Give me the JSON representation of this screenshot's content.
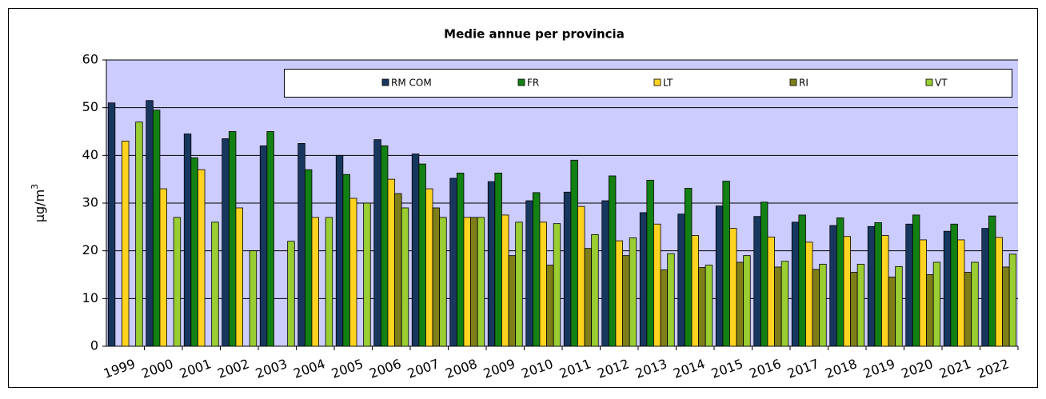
{
  "chart_data": {
    "type": "bar",
    "title": "Medie annue per provincia",
    "y_label": {
      "base": "µg/m",
      "sup": "3"
    },
    "categories": [
      "1999",
      "2000",
      "2001",
      "2002",
      "2003",
      "2004",
      "2005",
      "2006",
      "2007",
      "2008",
      "2009",
      "2010",
      "2011",
      "2012",
      "2013",
      "2014",
      "2015",
      "2016",
      "2017",
      "2018",
      "2019",
      "2020",
      "2021",
      "2022"
    ],
    "series": [
      {
        "name": "RM COM",
        "color": "#17375e",
        "values": [
          51,
          51.5,
          44.5,
          43.5,
          42,
          42.5,
          40,
          43.3,
          40.3,
          35.2,
          34.5,
          30.5,
          32.3,
          30.5,
          28,
          27.7,
          29.4,
          27.2,
          26,
          25.3,
          25.1,
          25.6,
          24.1,
          24.7
        ]
      },
      {
        "name": "FR",
        "color": "#138013",
        "values": [
          null,
          49.5,
          39.5,
          45,
          45,
          37,
          36,
          42,
          38.2,
          36.3,
          36.3,
          32.2,
          39,
          35.7,
          34.8,
          33.1,
          34.6,
          30.2,
          27.5,
          26.9,
          25.9,
          27.5,
          25.6,
          27.3
        ]
      },
      {
        "name": "LT",
        "color": "#ffd320",
        "values": [
          43,
          33,
          37,
          29,
          null,
          27,
          31,
          35,
          33,
          27,
          27.5,
          26,
          29.3,
          22.1,
          25.6,
          23.2,
          24.7,
          22.9,
          21.8,
          23,
          23.2,
          22.3,
          22.3,
          22.8
        ]
      },
      {
        "name": "RI",
        "color": "#7f7f1a",
        "values": [
          null,
          null,
          null,
          null,
          null,
          null,
          null,
          32,
          29,
          27,
          19,
          17,
          20.5,
          19,
          16,
          16.5,
          17.6,
          16.6,
          16.1,
          15.5,
          14.5,
          15,
          15.5,
          16.6
        ]
      },
      {
        "name": "VT",
        "color": "#9acd32",
        "values": [
          47,
          27,
          26,
          20,
          22,
          27,
          30,
          29,
          27,
          27,
          26,
          25.7,
          23.4,
          22.7,
          19.4,
          17,
          19,
          17.8,
          17.2,
          17.2,
          16.7,
          17.6,
          17.6,
          19.3
        ]
      }
    ],
    "ylim": [
      0,
      60
    ],
    "yticks": [
      0,
      10,
      20,
      30,
      40,
      50,
      60
    ],
    "grid": true,
    "legend": "top"
  }
}
